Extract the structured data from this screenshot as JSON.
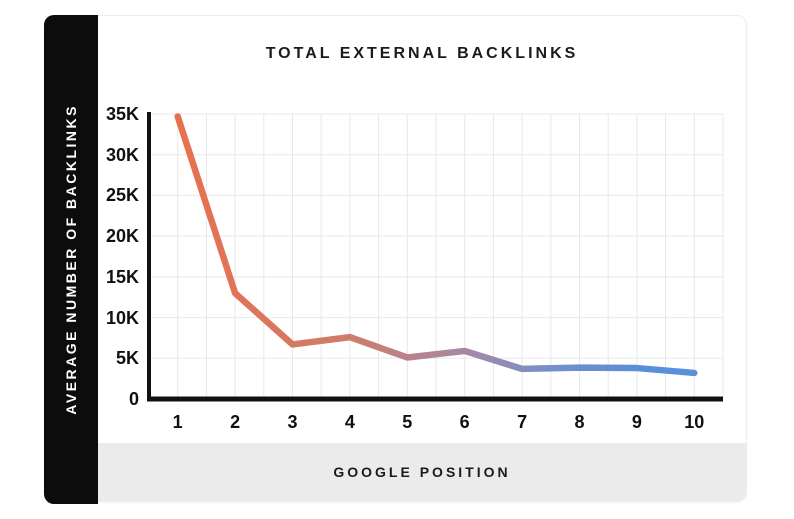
{
  "page": {
    "background": "#ffffff"
  },
  "card": {
    "background": "#ffffff",
    "border_color": "#ededed",
    "sidebar_bg": "#0c0c0c",
    "footer_bg": "#ebebeb"
  },
  "chart_data": {
    "type": "line",
    "title": "TOTAL EXTERNAL BACKLINKS",
    "xlabel": "GOOGLE POSITION",
    "ylabel": "AVERAGE NUMBER OF BACKLINKS",
    "x": [
      "1",
      "2",
      "3",
      "4",
      "5",
      "6",
      "7",
      "8",
      "9",
      "10"
    ],
    "values": [
      34700,
      13000,
      6700,
      7600,
      5100,
      5900,
      3700,
      3850,
      3800,
      3200
    ],
    "y_tick_labels": [
      "0",
      "5K",
      "10K",
      "15K",
      "20K",
      "25K",
      "30K",
      "35K"
    ],
    "ylim": [
      0,
      35000
    ],
    "y_tick_step": 5000,
    "grid": true,
    "legend": "none",
    "axis_color": "#111111",
    "grid_color": "#e8e8e8",
    "line_width": 6.5,
    "line_gradient": [
      {
        "offset": 0.0,
        "color": "#E7714E"
      },
      {
        "offset": 0.33,
        "color": "#CF7C6C"
      },
      {
        "offset": 0.55,
        "color": "#A888A2"
      },
      {
        "offset": 0.72,
        "color": "#7590C7"
      },
      {
        "offset": 0.88,
        "color": "#5B8ED8"
      },
      {
        "offset": 1.0,
        "color": "#5A90DB"
      }
    ]
  }
}
